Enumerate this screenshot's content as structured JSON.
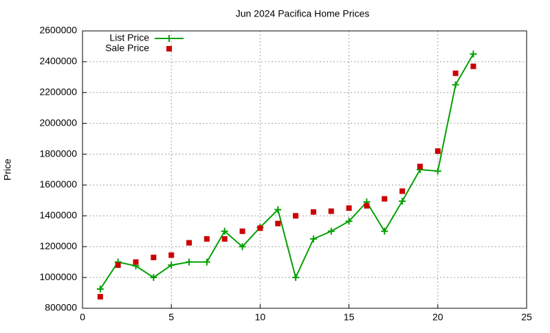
{
  "chart_data": {
    "type": "line",
    "title": "Jun 2024 Pacifica Home Prices",
    "y_label": "Price",
    "x": [
      1,
      2,
      3,
      4,
      5,
      6,
      7,
      8,
      9,
      10,
      11,
      12,
      13,
      14,
      15,
      16,
      17,
      18,
      19,
      20,
      21,
      22
    ],
    "series": [
      {
        "name": "List Price",
        "color": "#00a000",
        "style": "line-plus",
        "values": [
          925000,
          1100000,
          1075000,
          1000000,
          1080000,
          1100000,
          1100000,
          1300000,
          1200000,
          1325000,
          1440000,
          1000000,
          1250000,
          1300000,
          1365000,
          1490000,
          1300000,
          1495000,
          1700000,
          1690000,
          2250000,
          2450000
        ]
      },
      {
        "name": "Sale Price",
        "color": "#cc0000",
        "style": "square",
        "values": [
          875000,
          1080000,
          1100000,
          1130000,
          1145000,
          1225000,
          1250000,
          1250000,
          1300000,
          1320000,
          1350000,
          1400000,
          1425000,
          1430000,
          1450000,
          1465000,
          1510000,
          1560000,
          1720000,
          1820000,
          2325000,
          2370000
        ]
      }
    ],
    "xlim": [
      0,
      25
    ],
    "xticks": [
      0,
      5,
      10,
      15,
      20,
      25
    ],
    "ylim": [
      800000,
      2600000
    ],
    "yticks": [
      800000,
      1000000,
      1200000,
      1400000,
      1600000,
      1800000,
      2000000,
      2200000,
      2400000,
      2600000
    ],
    "grid": true,
    "legend": "top-left"
  }
}
